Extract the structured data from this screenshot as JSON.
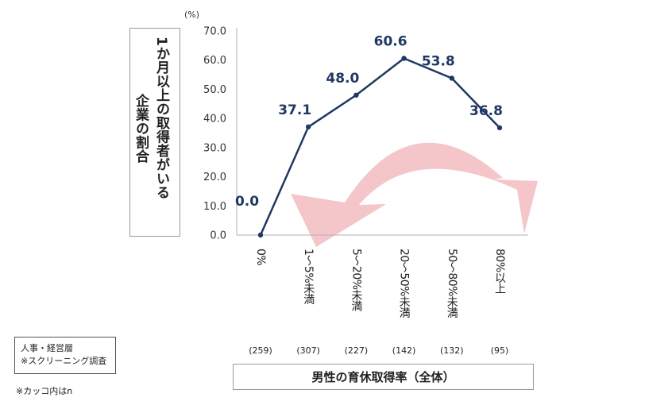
{
  "chart_data": {
    "type": "line",
    "unit_label": "(%)",
    "ylabel_lines": [
      "1か月以上の取得者がいる",
      "企業の割合"
    ],
    "xlabel": "男性の育休取得率（全体）",
    "ylim": [
      0,
      70
    ],
    "yticks": [
      0,
      10,
      20,
      30,
      40,
      50,
      60,
      70
    ],
    "ytick_labels": [
      "0.0",
      "10.0",
      "20.0",
      "30.0",
      "40.0",
      "50.0",
      "60.0",
      "70.0"
    ],
    "categories": [
      "0%",
      "1~5%未満",
      "5~20%未満",
      "20~50%未満",
      "50~80%未満",
      "80%以上"
    ],
    "category_labels_vertical": [
      "0%",
      "1～5%未満",
      "5～20%未満",
      "20～50%未満",
      "50～80%未満",
      "80%以上"
    ],
    "n_labels": [
      "(259)",
      "(307)",
      "(227)",
      "(142)",
      "(132)",
      "(95)"
    ],
    "series": [
      {
        "values": [
          0.0,
          37.1,
          48.0,
          60.6,
          53.8,
          36.8
        ],
        "data_labels": [
          "0.0",
          "37.1",
          "48.0",
          "60.6",
          "53.8",
          "36.8"
        ],
        "color": "#1f3864"
      }
    ],
    "arrow_color": "#f4c6c9",
    "grid": false
  },
  "source_note": [
    "人事・経営層",
    "※スクリーニング調査"
  ],
  "footnote": "※カッコ内はn"
}
